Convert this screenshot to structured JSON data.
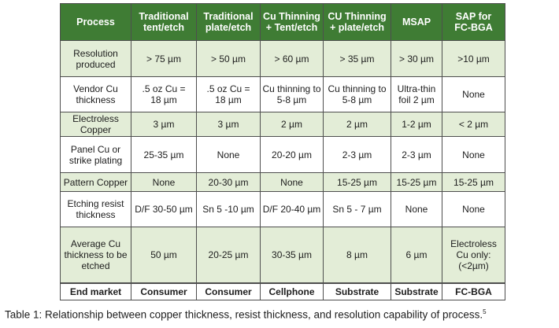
{
  "table": {
    "headers": [
      "Process",
      "Traditional tent/etch",
      "Traditional plate/etch",
      "Cu Thinning + Tent/etch",
      "CU Thinning + plate/etch",
      "MSAP",
      "SAP for FC-BGA"
    ],
    "header_lines": [
      [
        "Process"
      ],
      [
        "Traditional",
        "tent/etch"
      ],
      [
        "Traditional",
        "plate/etch"
      ],
      [
        "Cu Thinning",
        "+ Tent/etch"
      ],
      [
        "CU Thinning",
        "+ plate/etch"
      ],
      [
        "MSAP"
      ],
      [
        "SAP for",
        "FC-BGA"
      ]
    ],
    "rows": [
      {
        "label_lines": [
          "Resolution",
          "produced"
        ],
        "cells": [
          [
            "> 75 µm"
          ],
          [
            "> 50 µm"
          ],
          [
            "> 60 µm"
          ],
          [
            "> 35 µm"
          ],
          [
            "> 30 µm"
          ],
          [
            ">10 µm"
          ]
        ]
      },
      {
        "label_lines": [
          "Vendor Cu",
          "thickness"
        ],
        "cells": [
          [
            ".5 oz Cu =",
            "18 µm"
          ],
          [
            ".5 oz Cu =",
            "18 µm"
          ],
          [
            "Cu thinning to",
            "5-8 µm"
          ],
          [
            "Cu thinning to",
            "5-8 µm"
          ],
          [
            "Ultra-thin",
            "foil 2 µm"
          ],
          [
            "None"
          ]
        ]
      },
      {
        "label_lines": [
          "Electroless",
          "Copper"
        ],
        "cells": [
          [
            "3 µm"
          ],
          [
            "3 µm"
          ],
          [
            "2 µm"
          ],
          [
            "2 µm"
          ],
          [
            "1-2 µm"
          ],
          [
            "< 2 µm"
          ]
        ]
      },
      {
        "label_lines": [
          "Panel Cu or",
          "strike plating"
        ],
        "cells": [
          [
            "25-35 µm"
          ],
          [
            "None"
          ],
          [
            "20-20 µm"
          ],
          [
            "2-3 µm"
          ],
          [
            "2-3 µm"
          ],
          [
            "None"
          ]
        ]
      },
      {
        "label_lines": [
          "Pattern Copper"
        ],
        "cells": [
          [
            "None"
          ],
          [
            "20-30 µm"
          ],
          [
            "None"
          ],
          [
            "15-25 µm"
          ],
          [
            "15-25 µm"
          ],
          [
            "15-25 µm"
          ]
        ]
      },
      {
        "label_lines": [
          "Etching resist",
          "thickness"
        ],
        "cells": [
          [
            "D/F 30-50 µm"
          ],
          [
            "Sn 5 -10 µm"
          ],
          [
            "D/F 20-40 µm"
          ],
          [
            "Sn 5 - 7 µm"
          ],
          [
            "None"
          ],
          [
            "None"
          ]
        ]
      },
      {
        "label_lines": [
          "Average Cu",
          "thickness to be",
          "etched"
        ],
        "cells": [
          [
            "50 µm"
          ],
          [
            "20-25 µm"
          ],
          [
            "30-35 µm"
          ],
          [
            "8 µm"
          ],
          [
            "6 µm"
          ],
          [
            "Electroless",
            "Cu only:",
            "(<2µm)"
          ]
        ]
      }
    ],
    "footer": [
      "End market",
      "Consumer",
      "Consumer",
      "Cellphone",
      "Substrate",
      "Substrate",
      "FC-BGA"
    ]
  },
  "caption": {
    "text": "Table 1: Relationship between copper thickness, resist thickness, and resolution capability of process.",
    "superscript": "5"
  },
  "colors": {
    "header_bg": "#3f7c34",
    "header_text": "#ffffff",
    "row_alt_bg": "#e3edd7",
    "border": "#4e4e4e"
  }
}
